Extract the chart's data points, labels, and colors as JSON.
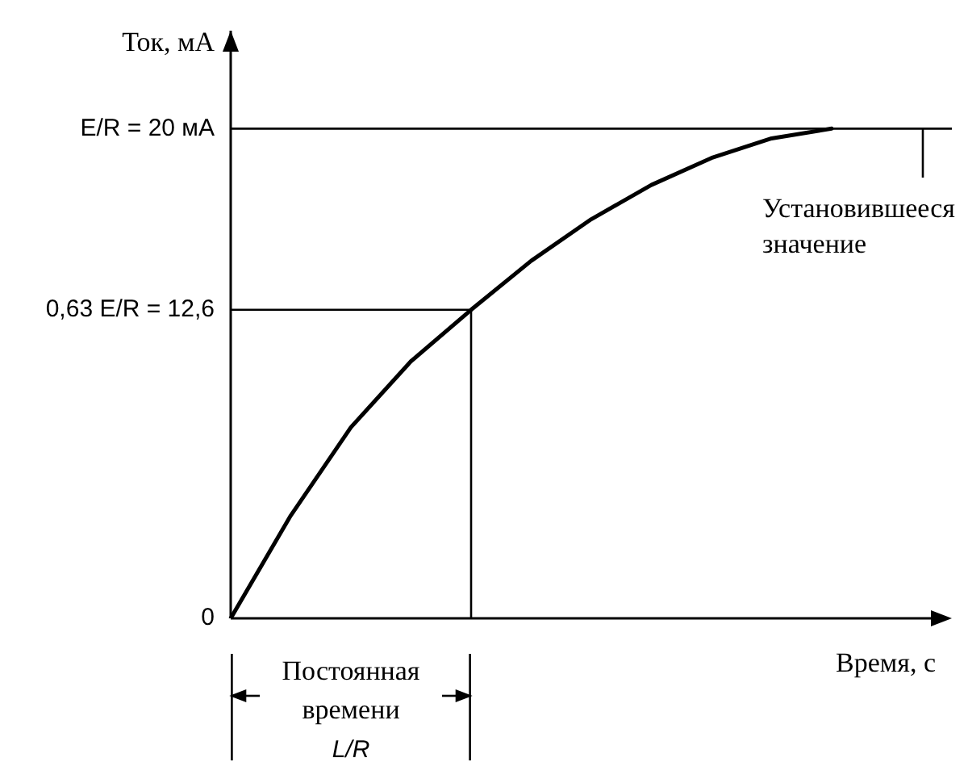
{
  "chart_data": {
    "type": "line",
    "xlabel": "Время, с",
    "ylabel": "Ток, мА",
    "categories": [
      null,
      null,
      null,
      null,
      null,
      null,
      null,
      null,
      null,
      null,
      null,
      null,
      null
    ],
    "series": [
      {
        "color": "#000000",
        "values": [
          0,
          4.2,
          7.8,
          10.5,
          12.6,
          14.6,
          16.3,
          17.7,
          18.8,
          19.6,
          20,
          null,
          null
        ]
      }
    ],
    "ylim": [
      0,
      24
    ],
    "yticks": [
      0,
      {
        "value": 12.6,
        "label": "0,63 E/R = 12,6"
      },
      {
        "value": 20,
        "label": "E/R = 20 мА"
      }
    ],
    "ref_lines": [
      {
        "axis": "y",
        "value": 20
      },
      {
        "axis": "y",
        "value": 12.6
      }
    ],
    "annotations": [
      "Установившееся значение",
      "Постоянная времени L/R"
    ],
    "grid": false,
    "legend": false,
    "marker": "none",
    "line_style": "solid"
  }
}
